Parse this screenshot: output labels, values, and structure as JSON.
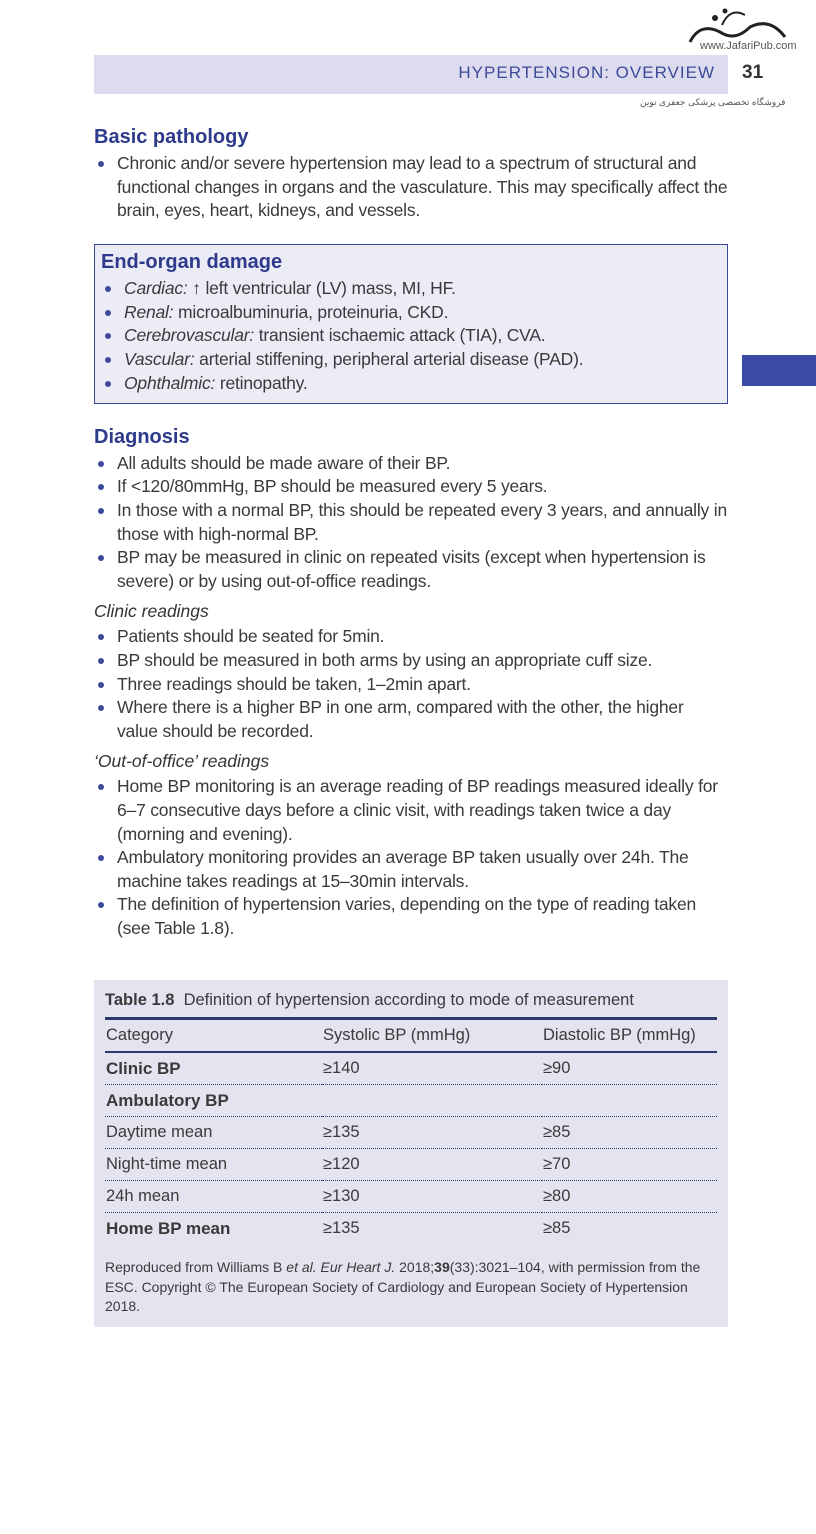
{
  "header": {
    "running_title": "HYPERTENSION: OVERVIEW",
    "page_number": "31",
    "watermark_url": "www.JafariPub.com",
    "watermark_text": "فروشگاه تخصصی پزشکی جعفری نوین"
  },
  "basic": {
    "title": "Basic pathology",
    "items": [
      "Chronic and/or severe hypertension may lead to a spectrum of structural and functional changes in organs and the vasculature. This may specifically affect the brain, eyes, heart, kidneys, and vessels."
    ]
  },
  "endorgan": {
    "title": "End-organ damage",
    "items": [
      {
        "label": "Cardiac:",
        "text": " ↑ left ventricular (LV) mass, MI, HF."
      },
      {
        "label": "Renal:",
        "text": " microalbuminuria, proteinuria, CKD."
      },
      {
        "label": "Cerebrovascular:",
        "text": " transient ischaemic attack (TIA), CVA."
      },
      {
        "label": "Vascular:",
        "text": " arterial stiffening, peripheral arterial disease (PAD)."
      },
      {
        "label": "Ophthalmic:",
        "text": " retinopathy."
      }
    ]
  },
  "diagnosis": {
    "title": "Diagnosis",
    "items": [
      "All adults should be made aware of their BP.",
      "If <120/80mmHg, BP should be measured every 5 years.",
      "In those with a normal BP, this should be repeated every 3 years, and annually in those with high-normal BP.",
      "BP may be measured in clinic on repeated visits (except when hypertension is severe) or by using out-of-office readings."
    ],
    "clinic": {
      "title": "Clinic readings",
      "items": [
        "Patients should be seated for 5min.",
        "BP should be measured in both arms by using an appropriate cuff size.",
        "Three readings should be taken, 1–2min apart.",
        "Where there is a higher BP in one arm, compared with the other, the higher value should be recorded."
      ]
    },
    "office": {
      "title": "‘Out-of-office’ readings",
      "items": [
        "Home BP monitoring is an average reading of BP readings measured ideally for 6–7 consecutive days before a clinic visit, with readings taken twice a day (morning and evening).",
        "Ambulatory monitoring provides an average BP taken usually over 24h. The machine takes readings at 15–30min intervals.",
        "The definition of hypertension varies, depending on the type of reading taken (see Table 1.8)."
      ]
    }
  },
  "table": {
    "label": "Table 1.8",
    "caption": "Definition of hypertension according to mode of measurement",
    "headers": [
      "Category",
      "Systolic BP (mmHg)",
      "Diastolic BP (mmHg)"
    ],
    "rows": [
      [
        "Clinic BP",
        "≥140",
        "≥90"
      ],
      [
        "Ambulatory BP",
        "",
        ""
      ],
      [
        "Daytime mean",
        "≥135",
        "≥85"
      ],
      [
        "Night-time mean",
        "≥120",
        "≥70"
      ],
      [
        "24h mean",
        "≥130",
        "≥80"
      ],
      [
        "Home BP mean",
        "≥135",
        "≥85"
      ]
    ],
    "note_a": "Reproduced from Williams B ",
    "note_etal": "et al.",
    "note_journal": " Eur Heart J.",
    "note_b": " 2018;",
    "note_vol": "39",
    "note_c": "(33):3021–104, with permission from the ESC. Copyright © The European Society of Cardiology and European Society of Hypertension 2018."
  }
}
